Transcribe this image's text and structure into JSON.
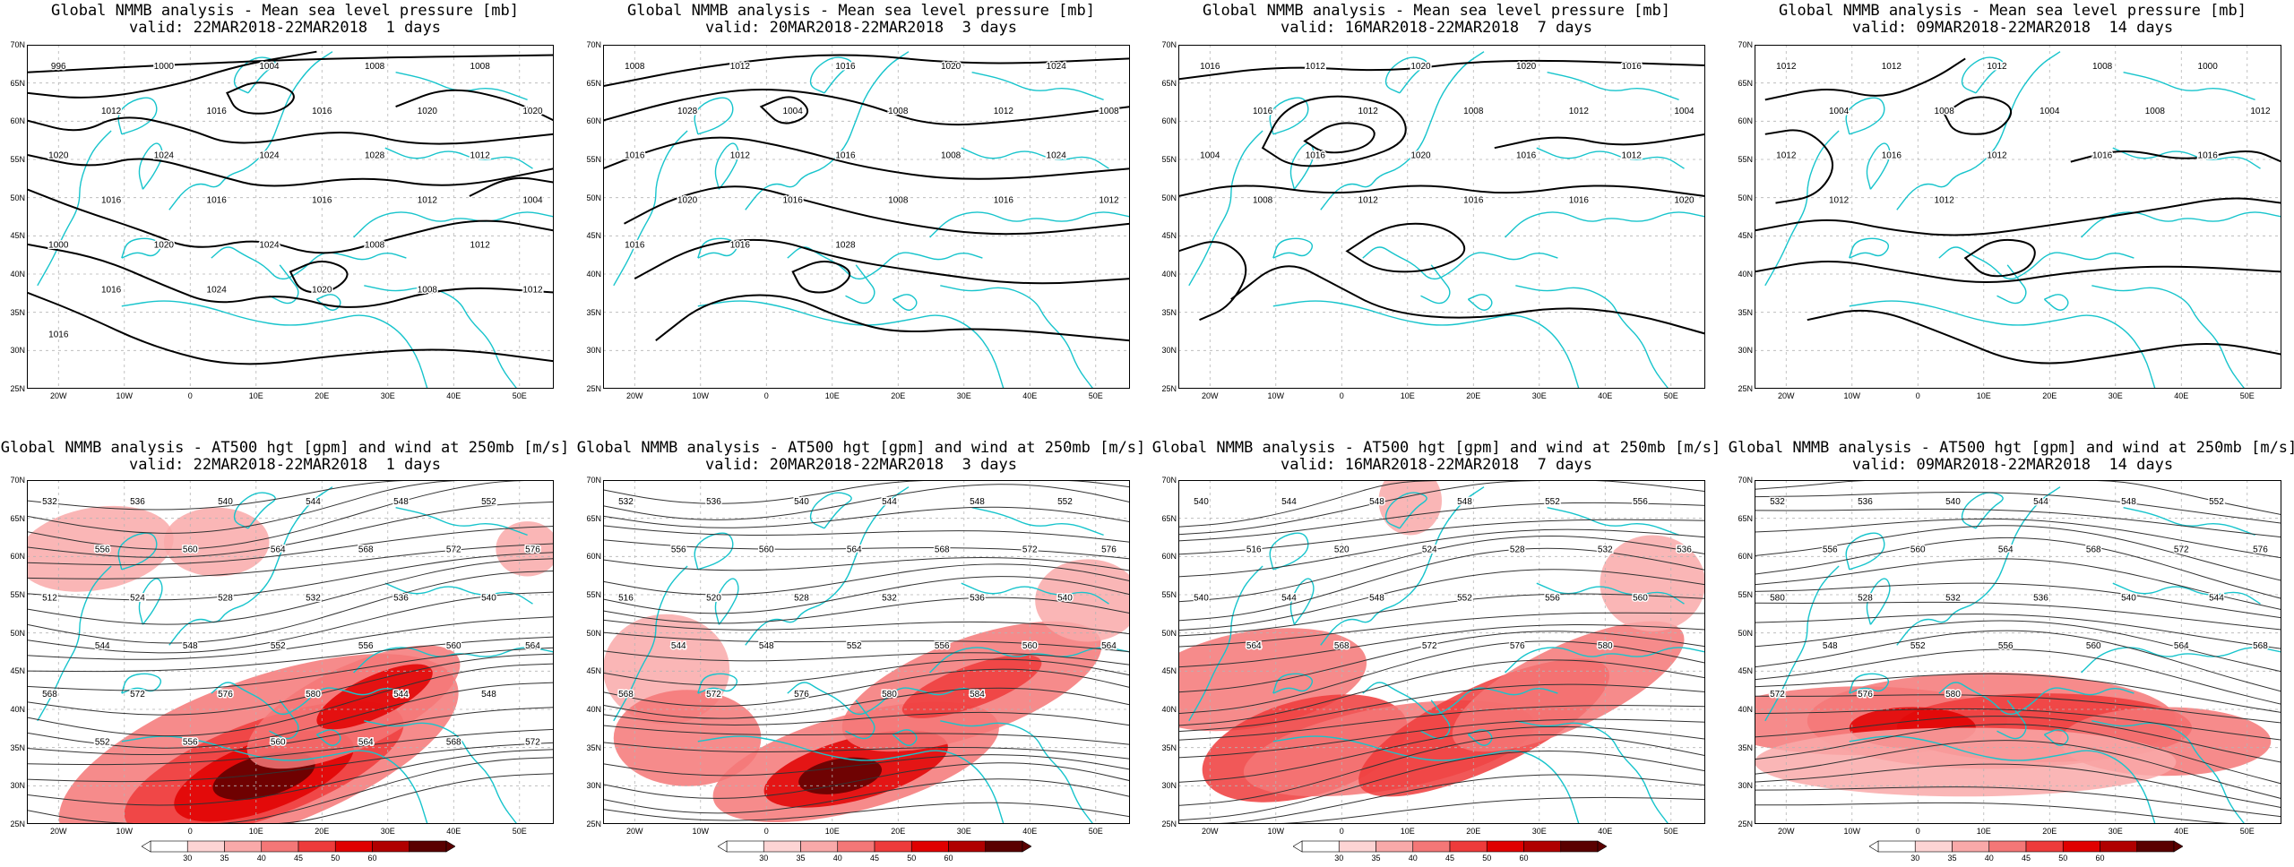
{
  "rows": [
    {
      "kind": "mslp",
      "panels": [
        {
          "title": "Global NMMB analysis - Mean sea level pressure [mb]",
          "subtitle": "valid: 22MAR2018-22MAR2018  1 days",
          "labels": [
            "996",
            "1000",
            "1004",
            "1008",
            "1008",
            "1012",
            "1016",
            "1016",
            "1020",
            "1020",
            "1020",
            "1024",
            "1024",
            "1028",
            "1012",
            "1016",
            "1016",
            "1016",
            "1012",
            "1004",
            "1000",
            "1020",
            "1024",
            "1008",
            "1012",
            "1016",
            "1024",
            "1020",
            "1008",
            "1012",
            "1016"
          ]
        },
        {
          "title": "Global NMMB analysis - Mean sea level pressure [mb]",
          "subtitle": "valid: 20MAR2018-22MAR2018  3 days",
          "labels": [
            "1008",
            "1012",
            "1016",
            "1020",
            "1024",
            "1028",
            "1004",
            "1008",
            "1012",
            "1008",
            "1016",
            "1012",
            "1016",
            "1008",
            "1024",
            "1020",
            "1016",
            "1008",
            "1016",
            "1012",
            "1016",
            "1016",
            "1028"
          ]
        },
        {
          "title": "Global NMMB analysis - Mean sea level pressure [mb]",
          "subtitle": "valid: 16MAR2018-22MAR2018  7 days",
          "labels": [
            "1016",
            "1012",
            "1020",
            "1020",
            "1016",
            "1016",
            "1012",
            "1008",
            "1012",
            "1004",
            "1004",
            "1016",
            "1020",
            "1016",
            "1012",
            "1008",
            "1012",
            "1016",
            "1016",
            "1020"
          ]
        },
        {
          "title": "Global NMMB analysis - Mean sea level pressure [mb]",
          "subtitle": "valid: 09MAR2018-22MAR2018  14 days",
          "labels": [
            "1012",
            "1012",
            "1012",
            "1008",
            "1000",
            "1004",
            "1008",
            "1004",
            "1008",
            "1012",
            "1012",
            "1016",
            "1012",
            "1016",
            "1016",
            "1012",
            "1012"
          ]
        }
      ]
    },
    {
      "kind": "z500",
      "panels": [
        {
          "title": "Global NMMB analysis - AT500 hgt [gpm] and wind at 250mb [m/s]",
          "subtitle": "valid: 22MAR2018-22MAR2018  1 days",
          "labels": [
            "532",
            "536",
            "540",
            "544",
            "548",
            "552",
            "556",
            "560",
            "564",
            "568",
            "572",
            "576",
            "512",
            "524",
            "528",
            "532",
            "536",
            "540",
            "544",
            "548",
            "552",
            "556",
            "560",
            "564",
            "568",
            "572",
            "576",
            "580",
            "544",
            "548",
            "552",
            "556",
            "560",
            "564",
            "568",
            "572"
          ]
        },
        {
          "title": "Global NMMB analysis - AT500 hgt [gpm] and wind at 250mb [m/s]",
          "subtitle": "valid: 20MAR2018-22MAR2018  3 days",
          "labels": [
            "532",
            "536",
            "540",
            "544",
            "548",
            "552",
            "556",
            "560",
            "564",
            "568",
            "572",
            "576",
            "516",
            "520",
            "528",
            "532",
            "536",
            "540",
            "544",
            "548",
            "552",
            "556",
            "560",
            "564",
            "568",
            "572",
            "576",
            "580",
            "584"
          ]
        },
        {
          "title": "Global NMMB analysis - AT500 hgt [gpm] and wind at 250mb [m/s]",
          "subtitle": "valid: 16MAR2018-22MAR2018  7 days",
          "labels": [
            "540",
            "544",
            "548",
            "548",
            "552",
            "556",
            "516",
            "520",
            "524",
            "528",
            "532",
            "536",
            "540",
            "544",
            "548",
            "552",
            "556",
            "560",
            "564",
            "568",
            "572",
            "576",
            "580"
          ]
        },
        {
          "title": "Global NMMB analysis - AT500 hgt [gpm] and wind at 250mb [m/s]",
          "subtitle": "valid: 09MAR2018-22MAR2018  14 days",
          "labels": [
            "532",
            "536",
            "540",
            "544",
            "548",
            "552",
            "556",
            "560",
            "564",
            "568",
            "572",
            "576",
            "580",
            "528",
            "532",
            "536",
            "540",
            "544",
            "548",
            "552",
            "556",
            "560",
            "564",
            "568",
            "572",
            "576",
            "580"
          ]
        }
      ]
    }
  ],
  "axes": {
    "lat_labels": [
      "70N",
      "65N",
      "60N",
      "55N",
      "50N",
      "45N",
      "40N",
      "35N",
      "30N",
      "25N"
    ],
    "lon_labels": [
      "20W",
      "10W",
      "0",
      "10E",
      "20E",
      "30E",
      "40E",
      "50E"
    ]
  },
  "colorbar": {
    "ticks": [
      "30",
      "35",
      "40",
      "45",
      "50",
      "60"
    ],
    "colors": [
      "#ffffff",
      "#fdd4d4",
      "#f9a9a9",
      "#f47777",
      "#ee3b3b",
      "#e00000",
      "#b00000",
      "#5a0000"
    ]
  },
  "colors": {
    "coast": "#17c4cc",
    "contour": "#000000",
    "grid": "#b4b4b4"
  }
}
